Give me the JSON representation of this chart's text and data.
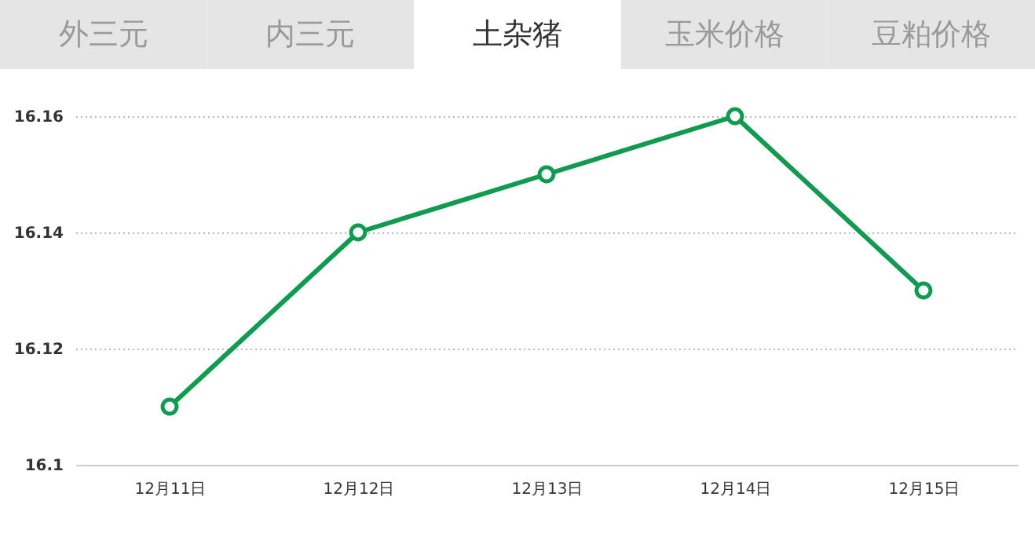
{
  "chart_data": {
    "type": "line",
    "title": "土杂猪",
    "annotations": [
      "外三元",
      "内三元",
      "玉米价格",
      "豆粕价格"
    ],
    "categories": [
      "12月11日",
      "12月12日",
      "12月13日",
      "12月14日",
      "12月15日"
    ],
    "series": [
      {
        "color": "#119b50",
        "values": [
          16.11,
          16.14,
          16.15,
          16.16,
          16.13
        ]
      }
    ],
    "ylim": [
      16.1,
      16.16
    ],
    "yticks": [
      16.1,
      16.12,
      16.14,
      16.16
    ],
    "grid": "y",
    "marker": "circle",
    "line_style": "solid"
  }
}
